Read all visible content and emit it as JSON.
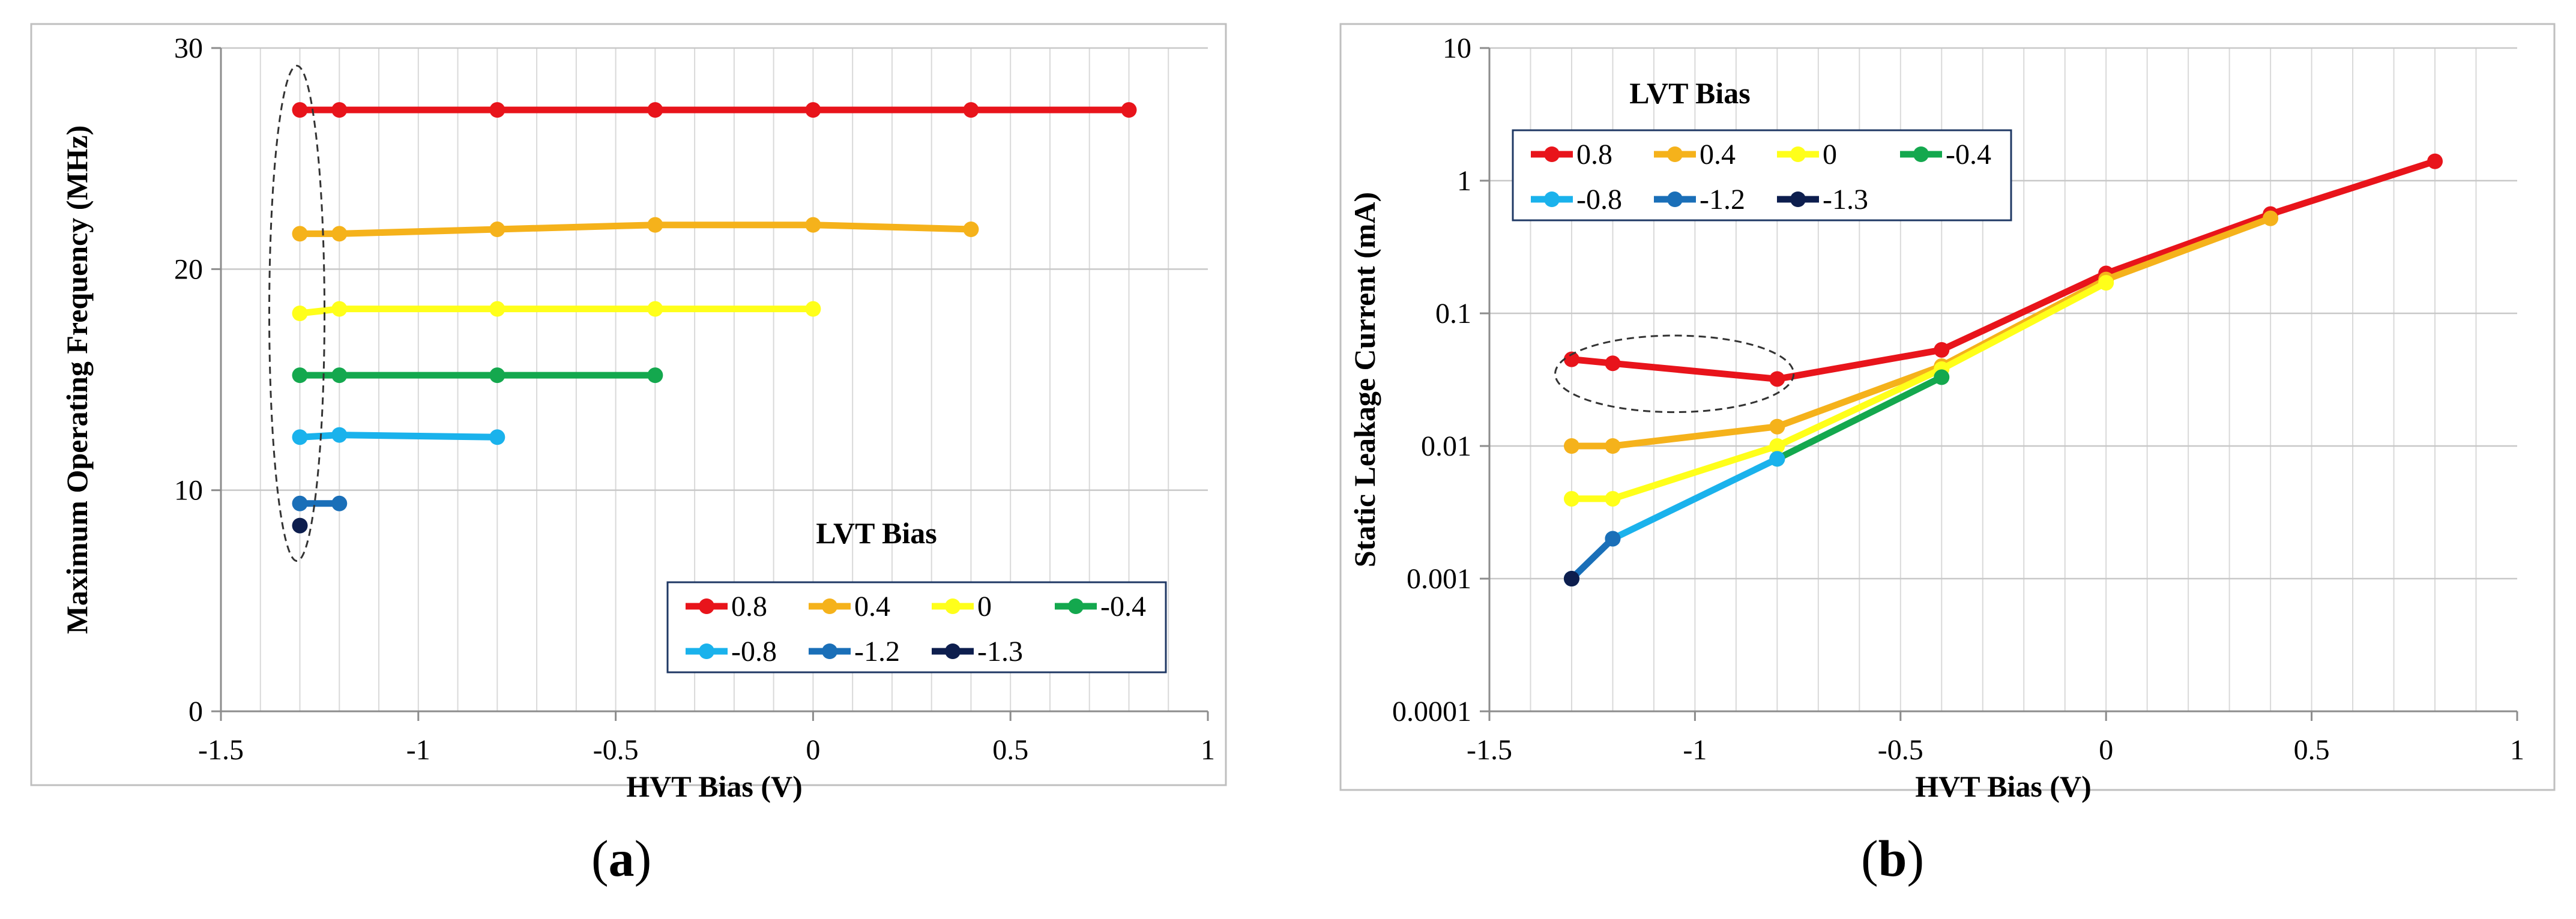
{
  "chart_data": [
    {
      "type": "line",
      "panel_label": "a",
      "title": "",
      "xlabel": "HVT Bias (V)",
      "ylabel": "Maximum Operating Frequency (MHz)",
      "xlim": [
        -1.5,
        1
      ],
      "ylim": [
        0,
        30
      ],
      "yscale": "linear",
      "x_ticks": [
        -1.5,
        -1,
        -0.5,
        0,
        0.5,
        1
      ],
      "x_tick_labels": [
        "-1.5",
        "-1",
        "-0.5",
        "0",
        "0.5",
        "1"
      ],
      "y_ticks": [
        0,
        10,
        20,
        30
      ],
      "y_tick_labels": [
        "0",
        "10",
        "20",
        "30"
      ],
      "grid": "vertical minor every 0.1 V, horizontal major",
      "legend_title": "LVT Bias",
      "legend_placement": "bottom-right",
      "annotation": "dashed ellipse around the points at HVT Bias -1.3 V",
      "series": [
        {
          "name": "0.8",
          "color": "#e8141b",
          "x": [
            -1.3,
            -1.2,
            -0.8,
            -0.4,
            0,
            0.4,
            0.8
          ],
          "y": [
            27.2,
            27.2,
            27.2,
            27.2,
            27.2,
            27.2,
            27.2
          ]
        },
        {
          "name": "0.4",
          "color": "#f5b21b",
          "x": [
            -1.3,
            -1.2,
            -0.8,
            -0.4,
            0,
            0.4
          ],
          "y": [
            21.6,
            21.6,
            21.8,
            22.0,
            22.0,
            21.8
          ]
        },
        {
          "name": "0",
          "color": "#ffff1a",
          "x": [
            -1.3,
            -1.2,
            -0.8,
            -0.4,
            0
          ],
          "y": [
            18.0,
            18.2,
            18.2,
            18.2,
            18.2
          ]
        },
        {
          "name": "-0.4",
          "color": "#14a84e",
          "x": [
            -1.3,
            -1.2,
            -0.8,
            -0.4
          ],
          "y": [
            15.2,
            15.2,
            15.2,
            15.2
          ]
        },
        {
          "name": "-0.8",
          "color": "#1ab2ec",
          "x": [
            -1.3,
            -1.2,
            -0.8
          ],
          "y": [
            12.4,
            12.5,
            12.4
          ]
        },
        {
          "name": "-1.2",
          "color": "#1a6fb8",
          "x": [
            -1.3,
            -1.2
          ],
          "y": [
            9.4,
            9.4
          ]
        },
        {
          "name": "-1.3",
          "color": "#0d1e4e",
          "x": [
            -1.3
          ],
          "y": [
            8.4
          ]
        }
      ]
    },
    {
      "type": "line",
      "panel_label": "b",
      "title": "",
      "xlabel": "HVT Bias (V)",
      "ylabel": "Static Leakage Current (mA)",
      "xlim": [
        -1.5,
        1
      ],
      "ylim": [
        0.0001,
        10
      ],
      "yscale": "log",
      "x_ticks": [
        -1.5,
        -1,
        -0.5,
        0,
        0.5,
        1
      ],
      "x_tick_labels": [
        "-1.5",
        "-1",
        "-0.5",
        "0",
        "0.5",
        "1"
      ],
      "y_ticks": [
        0.0001,
        0.001,
        0.01,
        0.1,
        1,
        10
      ],
      "y_tick_labels": [
        "0.0001",
        "0.001",
        "0.01",
        "0.1",
        "1",
        "10"
      ],
      "grid": "vertical minor every 0.1 V, horizontal major (decades)",
      "legend_title": "LVT Bias",
      "legend_placement": "top-left",
      "annotation": "dashed ellipse around the LVT 0.8 points from -1.3 V to -0.8 V",
      "series": [
        {
          "name": "0.8",
          "color": "#e8141b",
          "x": [
            -1.3,
            -1.2,
            -0.8,
            -0.4,
            0,
            0.4,
            0.8
          ],
          "y": [
            0.045,
            0.042,
            0.032,
            0.053,
            0.2,
            0.56,
            1.4
          ]
        },
        {
          "name": "0.4",
          "color": "#f5b21b",
          "x": [
            -1.3,
            -1.2,
            -0.8,
            -0.4,
            0,
            0.4
          ],
          "y": [
            0.01,
            0.01,
            0.014,
            0.04,
            0.18,
            0.52
          ]
        },
        {
          "name": "0",
          "color": "#ffff1a",
          "x": [
            -1.3,
            -1.2,
            -0.8,
            -0.4,
            0
          ],
          "y": [
            0.004,
            0.004,
            0.01,
            0.038,
            0.17
          ]
        },
        {
          "name": "-0.4",
          "color": "#14a84e",
          "x": [
            -0.8,
            -0.4
          ],
          "y": [
            0.008,
            0.033
          ]
        },
        {
          "name": "-0.8",
          "color": "#1ab2ec",
          "x": [
            -1.3,
            -1.2,
            -0.8
          ],
          "y": [
            0.001,
            0.002,
            0.008
          ]
        },
        {
          "name": "-1.2",
          "color": "#1a6fb8",
          "x": [
            -1.3,
            -1.2
          ],
          "y": [
            0.001,
            0.002
          ]
        },
        {
          "name": "-1.3",
          "color": "#0d1e4e",
          "x": [
            -1.3
          ],
          "y": [
            0.001
          ]
        }
      ]
    }
  ],
  "captions": [
    {
      "open": "(",
      "letter": "a",
      "close": ")"
    },
    {
      "open": "(",
      "letter": "b",
      "close": ")"
    }
  ]
}
